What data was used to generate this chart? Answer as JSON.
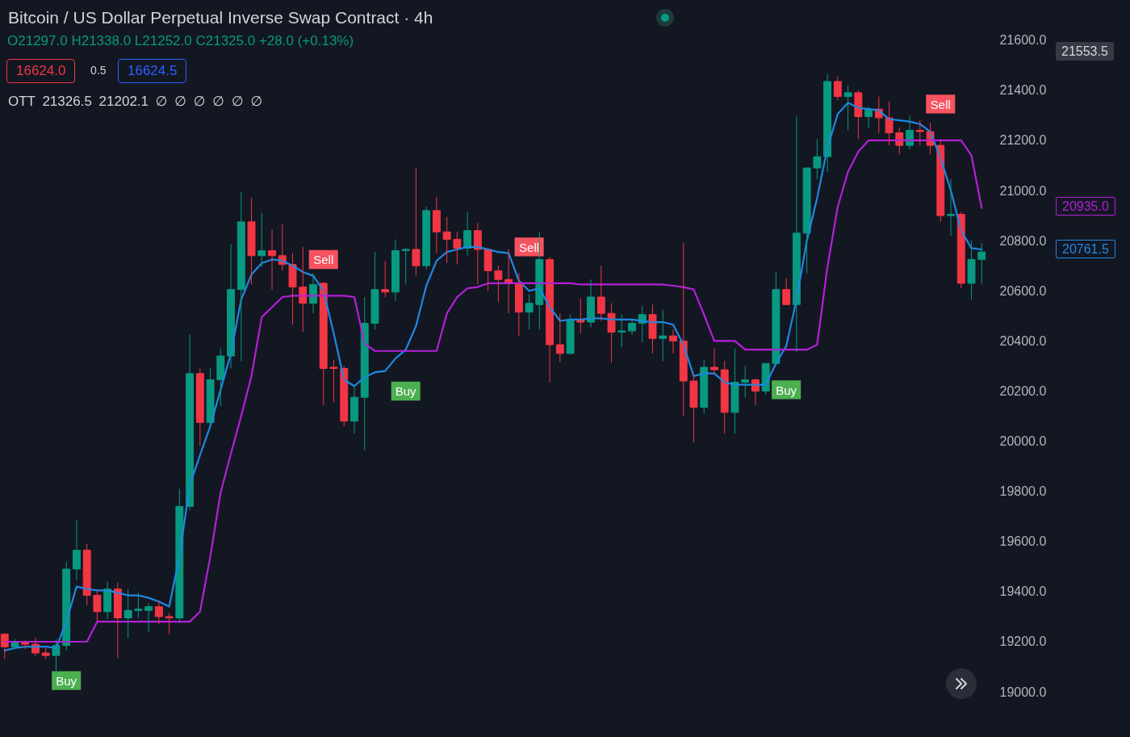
{
  "chart_data": {
    "type": "candlestick",
    "title": "Bitcoin / US Dollar Perpetual Inverse Swap Contract · 4h",
    "categories": [
      null,
      null,
      null,
      null,
      null,
      null,
      null,
      null,
      null,
      null,
      null,
      null,
      null,
      null,
      null,
      null,
      null,
      null,
      null,
      null,
      null,
      null,
      null,
      null,
      null,
      null,
      null,
      null,
      null,
      null,
      null,
      null,
      null,
      null,
      null,
      null,
      null,
      null,
      null,
      null,
      null,
      null,
      null,
      null,
      null,
      null,
      null,
      null,
      null,
      null,
      null,
      null,
      null,
      null,
      null,
      null,
      null,
      null,
      null,
      null,
      null,
      null,
      null,
      null,
      null,
      null,
      null,
      null,
      null,
      null,
      null,
      null,
      null,
      null,
      null,
      null,
      null,
      null,
      null,
      null,
      null,
      null,
      null,
      null,
      null,
      null,
      null,
      null,
      null,
      null,
      null,
      null,
      null,
      null,
      null,
      null
    ],
    "ohlc": [
      [
        19230,
        19235,
        19130,
        19180
      ],
      [
        19180,
        19210,
        19170,
        19195
      ],
      [
        19195,
        19205,
        19170,
        19190
      ],
      [
        19190,
        19215,
        19145,
        19155
      ],
      [
        19155,
        19175,
        19130,
        19145
      ],
      [
        19145,
        19210,
        19070,
        19185
      ],
      [
        19185,
        19520,
        19165,
        19490
      ],
      [
        19490,
        19685,
        19445,
        19565
      ],
      [
        19565,
        19590,
        19345,
        19385
      ],
      [
        19385,
        19405,
        19280,
        19320
      ],
      [
        19320,
        19440,
        19290,
        19410
      ],
      [
        19410,
        19435,
        19135,
        19295
      ],
      [
        19295,
        19410,
        19215,
        19325
      ],
      [
        19325,
        19395,
        19295,
        19330
      ],
      [
        19325,
        19355,
        19240,
        19340
      ],
      [
        19340,
        19365,
        19270,
        19300
      ],
      [
        19300,
        19315,
        19230,
        19295
      ],
      [
        19295,
        19810,
        19275,
        19740
      ],
      [
        19740,
        20425,
        19725,
        20270
      ],
      [
        20270,
        20290,
        19980,
        20075
      ],
      [
        20075,
        20290,
        20055,
        20245
      ],
      [
        20245,
        20370,
        20140,
        20340
      ],
      [
        20340,
        20785,
        20290,
        20605
      ],
      [
        20605,
        20995,
        20320,
        20875
      ],
      [
        20875,
        20970,
        20625,
        20740
      ],
      [
        20740,
        20910,
        20695,
        20760
      ],
      [
        20760,
        20845,
        20605,
        20740
      ],
      [
        20740,
        20865,
        20680,
        20705
      ],
      [
        20705,
        20750,
        20465,
        20615
      ],
      [
        20615,
        20775,
        20435,
        20550
      ],
      [
        20550,
        20670,
        20510,
        20625
      ],
      [
        20630,
        20635,
        20145,
        20290
      ],
      [
        20295,
        20325,
        20155,
        20290
      ],
      [
        20290,
        20300,
        20060,
        20080
      ],
      [
        20080,
        20225,
        20030,
        20175
      ],
      [
        20175,
        20575,
        19965,
        20470
      ],
      [
        20470,
        20755,
        20445,
        20605
      ],
      [
        20605,
        20720,
        20575,
        20595
      ],
      [
        20595,
        20805,
        20560,
        20760
      ],
      [
        20760,
        20770,
        20625,
        20765
      ],
      [
        20765,
        21090,
        20660,
        20700
      ],
      [
        20700,
        20935,
        20685,
        20920
      ],
      [
        20920,
        20975,
        20750,
        20835
      ],
      [
        20835,
        20895,
        20710,
        20805
      ],
      [
        20805,
        20835,
        20705,
        20770
      ],
      [
        20770,
        20915,
        20740,
        20840
      ],
      [
        20840,
        20870,
        20625,
        20765
      ],
      [
        20765,
        20770,
        20600,
        20680
      ],
      [
        20680,
        20700,
        20555,
        20645
      ],
      [
        20645,
        20765,
        20510,
        20630
      ],
      [
        20630,
        20670,
        20420,
        20515
      ],
      [
        20515,
        20585,
        20445,
        20550
      ],
      [
        20545,
        20835,
        20445,
        20725
      ],
      [
        20725,
        20735,
        20235,
        20385
      ],
      [
        20385,
        20510,
        20315,
        20350
      ],
      [
        20350,
        20505,
        20345,
        20485
      ],
      [
        20485,
        20570,
        20430,
        20475
      ],
      [
        20475,
        20645,
        20455,
        20575
      ],
      [
        20575,
        20700,
        20480,
        20510
      ],
      [
        20510,
        20550,
        20315,
        20435
      ],
      [
        20435,
        20505,
        20375,
        20440
      ],
      [
        20440,
        20485,
        20425,
        20470
      ],
      [
        20470,
        20540,
        20395,
        20505
      ],
      [
        20505,
        20545,
        20350,
        20410
      ],
      [
        20410,
        20525,
        20320,
        20420
      ],
      [
        20420,
        20445,
        20350,
        20400
      ],
      [
        20400,
        20790,
        20100,
        20240
      ],
      [
        20240,
        20270,
        19995,
        20135
      ],
      [
        20135,
        20325,
        20110,
        20295
      ],
      [
        20295,
        20370,
        20265,
        20285
      ],
      [
        20285,
        20320,
        20030,
        20115
      ],
      [
        20115,
        20370,
        20030,
        20235
      ],
      [
        20235,
        20300,
        20175,
        20245
      ],
      [
        20245,
        20250,
        20145,
        20200
      ],
      [
        20200,
        20310,
        20185,
        20310
      ],
      [
        20310,
        20675,
        20300,
        20605
      ],
      [
        20605,
        20650,
        20545,
        20545
      ],
      [
        20545,
        21295,
        20355,
        20830
      ],
      [
        20830,
        21090,
        20670,
        21090
      ],
      [
        21090,
        21205,
        21045,
        21135
      ],
      [
        21135,
        21465,
        21075,
        21435
      ],
      [
        21435,
        21455,
        21360,
        21375
      ],
      [
        21375,
        21420,
        21240,
        21390
      ],
      [
        21390,
        21400,
        21205,
        21295
      ],
      [
        21295,
        21335,
        21250,
        21325
      ],
      [
        21325,
        21375,
        21230,
        21290
      ],
      [
        21290,
        21355,
        21180,
        21230
      ],
      [
        21230,
        21250,
        21145,
        21180
      ],
      [
        21180,
        21300,
        21165,
        21240
      ],
      [
        21240,
        21280,
        21180,
        21235
      ],
      [
        21235,
        21270,
        21145,
        21180
      ],
      [
        21180,
        21205,
        20875,
        20900
      ],
      [
        20900,
        21045,
        20820,
        20905
      ],
      [
        20905,
        20915,
        20610,
        20630
      ],
      [
        20630,
        20800,
        20565,
        20725
      ],
      [
        20725,
        20790,
        20625,
        20755
      ]
    ],
    "colors": [
      "#f23645",
      "#089981",
      "#f23645",
      "#f23645",
      "#f23645",
      "#089981",
      "#089981",
      "#089981",
      "#f23645",
      "#f23645",
      "#089981",
      "#f23645",
      "#089981",
      "#089981",
      "#089981",
      "#f23645",
      "#f23645",
      "#089981",
      "#089981",
      "#f23645",
      "#089981",
      "#089981",
      "#089981",
      "#089981",
      "#f23645",
      "#089981",
      "#f23645",
      "#f23645",
      "#f23645",
      "#f23645",
      "#089981",
      "#f23645",
      "#f23645",
      "#f23645",
      "#089981",
      "#089981",
      "#089981",
      "#f23645",
      "#089981",
      "#089981",
      "#f23645",
      "#089981",
      "#f23645",
      "#f23645",
      "#f23645",
      "#089981",
      "#f23645",
      "#f23645",
      "#f23645",
      "#f23645",
      "#f23645",
      "#089981",
      "#089981",
      "#f23645",
      "#f23645",
      "#089981",
      "#f23645",
      "#089981",
      "#f23645",
      "#f23645",
      "#089981",
      "#089981",
      "#089981",
      "#f23645",
      "#089981",
      "#f23645",
      "#f23645",
      "#f23645",
      "#089981",
      "#f23645",
      "#f23645",
      "#089981",
      "#089981",
      "#f23645",
      "#089981",
      "#089981",
      "#f23645",
      "#089981",
      "#089981",
      "#089981",
      "#089981",
      "#f23645",
      "#089981",
      "#f23645",
      "#089981",
      "#f23645",
      "#f23645",
      "#f23645",
      "#089981",
      "#f23645",
      "#f23645",
      "#f23645",
      "#089981",
      "#f23645",
      "#089981",
      "#089981"
    ],
    "series": [
      {
        "type": "line",
        "color": "#1e88e5",
        "values": [
          19165,
          19175,
          19180,
          19180,
          19180,
          19175,
          19280,
          19420,
          19410,
          19405,
          19405,
          19395,
          19385,
          19385,
          19375,
          19360,
          19340,
          19540,
          19825,
          19945,
          20060,
          20205,
          20350,
          20565,
          20665,
          20710,
          20725,
          20720,
          20700,
          20675,
          20660,
          20600,
          20430,
          20245,
          20220,
          20255,
          20275,
          20280,
          20330,
          20365,
          20460,
          20620,
          20720,
          20755,
          20765,
          20775,
          20775,
          20765,
          20755,
          20750,
          20640,
          20600,
          20610,
          20535,
          20480,
          20485,
          20485,
          20490,
          20490,
          20485,
          20485,
          20485,
          20480,
          20475,
          20475,
          20465,
          20385,
          20260,
          20270,
          20270,
          20235,
          20225,
          20225,
          20225,
          20225,
          20310,
          20380,
          20565,
          20800,
          20970,
          21170,
          21305,
          21350,
          21330,
          21325,
          21320,
          21285,
          21280,
          21275,
          21265,
          21235,
          21130,
          21000,
          20840,
          20770,
          20765
        ]
      },
      {
        "type": "line",
        "color": "#b41fd8",
        "values": [
          19200,
          19200,
          19200,
          19200,
          19200,
          19200,
          19200,
          19200,
          19200,
          19280,
          19280,
          19280,
          19280,
          19280,
          19280,
          19280,
          19280,
          19280,
          19280,
          19320,
          19540,
          19795,
          19950,
          20100,
          20260,
          20495,
          20535,
          20575,
          20580,
          20580,
          20580,
          20580,
          20580,
          20580,
          20575,
          20390,
          20360,
          20360,
          20360,
          20360,
          20360,
          20360,
          20360,
          20510,
          20575,
          20610,
          20615,
          20630,
          20630,
          20630,
          20630,
          20630,
          20630,
          20630,
          20630,
          20630,
          20625,
          20625,
          20625,
          20625,
          20625,
          20625,
          20625,
          20625,
          20625,
          20620,
          20615,
          20605,
          20505,
          20400,
          20400,
          20400,
          20365,
          20365,
          20365,
          20365,
          20365,
          20365,
          20365,
          20385,
          20695,
          20935,
          21075,
          21155,
          21200,
          21200,
          21200,
          21200,
          21200,
          21200,
          21200,
          21200,
          21200,
          21200,
          21140,
          20930
        ]
      },
      {
        "type": "scatter",
        "color": "#4caf50",
        "marker": "square",
        "values": [
          null,
          null,
          null,
          null,
          null,
          null,
          19045,
          null,
          null,
          null,
          null,
          null,
          null,
          null,
          null,
          null,
          null,
          null,
          null,
          null,
          null,
          null,
          null,
          null,
          null,
          null,
          null,
          null,
          null,
          null,
          null,
          null,
          null,
          null,
          null,
          null,
          null,
          null,
          null,
          20200,
          null,
          null,
          null,
          null,
          null,
          null,
          null,
          null,
          null,
          null,
          null,
          null,
          null,
          null,
          null,
          null,
          null,
          null,
          null,
          null,
          null,
          null,
          null,
          null,
          null,
          null,
          null,
          null,
          null,
          null,
          null,
          null,
          null,
          null,
          null,
          null,
          20205,
          null,
          null,
          null,
          null,
          null,
          null,
          null,
          null,
          null,
          null,
          null,
          null,
          null,
          null,
          null,
          null,
          null,
          null,
          null
        ],
        "value_labels": [
          null,
          null,
          null,
          null,
          null,
          null,
          "Buy",
          null,
          null,
          null,
          null,
          null,
          null,
          null,
          null,
          null,
          null,
          null,
          null,
          null,
          null,
          null,
          null,
          null,
          null,
          null,
          null,
          null,
          null,
          null,
          null,
          null,
          null,
          null,
          null,
          null,
          null,
          null,
          null,
          "Buy",
          null,
          null,
          null,
          null,
          null,
          null,
          null,
          null,
          null,
          null,
          null,
          null,
          null,
          null,
          null,
          null,
          null,
          null,
          null,
          null,
          null,
          null,
          null,
          null,
          null,
          null,
          null,
          null,
          null,
          null,
          null,
          null,
          null,
          null,
          null,
          null,
          "Buy",
          null,
          null,
          null,
          null,
          null,
          null,
          null,
          null,
          null,
          null,
          null,
          null,
          null,
          null,
          null,
          null,
          null,
          null,
          null
        ]
      },
      {
        "type": "scatter",
        "color": "#f7525f",
        "marker": "square",
        "values": [
          null,
          null,
          null,
          null,
          null,
          null,
          null,
          null,
          null,
          null,
          null,
          null,
          null,
          null,
          null,
          null,
          null,
          null,
          null,
          null,
          null,
          null,
          null,
          null,
          null,
          null,
          null,
          null,
          null,
          null,
          null,
          20725,
          null,
          null,
          null,
          null,
          null,
          null,
          null,
          null,
          null,
          null,
          null,
          null,
          null,
          null,
          null,
          null,
          null,
          null,
          null,
          20775,
          null,
          null,
          null,
          null,
          null,
          null,
          null,
          null,
          null,
          null,
          null,
          null,
          null,
          null,
          null,
          null,
          null,
          null,
          null,
          null,
          null,
          null,
          null,
          null,
          null,
          null,
          null,
          null,
          null,
          null,
          null,
          null,
          null,
          null,
          null,
          null,
          null,
          null,
          null,
          21345,
          null,
          null,
          null,
          null
        ],
        "value_labels": [
          null,
          null,
          null,
          null,
          null,
          null,
          null,
          null,
          null,
          null,
          null,
          null,
          null,
          null,
          null,
          null,
          null,
          null,
          null,
          null,
          null,
          null,
          null,
          null,
          null,
          null,
          null,
          null,
          null,
          null,
          null,
          "Sell",
          null,
          null,
          null,
          null,
          null,
          null,
          null,
          null,
          null,
          null,
          null,
          null,
          null,
          null,
          null,
          null,
          null,
          null,
          null,
          "Sell",
          null,
          null,
          null,
          null,
          null,
          null,
          null,
          null,
          null,
          null,
          null,
          null,
          null,
          null,
          null,
          null,
          null,
          null,
          null,
          null,
          null,
          null,
          null,
          null,
          null,
          null,
          null,
          null,
          null,
          null,
          null,
          null,
          null,
          null,
          null,
          null,
          null,
          null,
          null,
          "Sell",
          null,
          null,
          null,
          null
        ]
      }
    ],
    "ylim": [
      18820,
      21760
    ],
    "yticks": [
      {
        "value": 19000,
        "label": "19000.0"
      },
      {
        "value": 19200,
        "label": "19200.0"
      },
      {
        "value": 19400,
        "label": "19400.0"
      },
      {
        "value": 19600,
        "label": "19600.0"
      },
      {
        "value": 19800,
        "label": "19800.0"
      },
      {
        "value": 20000,
        "label": "20000.0"
      },
      {
        "value": 20200,
        "label": "20200.0"
      },
      {
        "value": 20400,
        "label": "20400.0"
      },
      {
        "value": 20600,
        "label": "20600.0"
      },
      {
        "value": 20800,
        "label": "20800.0"
      },
      {
        "value": 21000,
        "label": "21000.0"
      },
      {
        "value": 21200,
        "label": "21200.0"
      },
      {
        "value": 21400,
        "label": "21400.0"
      },
      {
        "value": 21600,
        "label": "21600.0"
      }
    ],
    "tick_labels": "y",
    "annotations": [
      "O21297.0 H21338.0 L21252.0 C21325.0 +28.0 (+0.13%)",
      "16624.0",
      "0.5",
      "16624.5",
      "OTT 21326.5 21202.1 ∅ ∅ ∅ ∅ ∅ ∅",
      "21553.5",
      "20935.0",
      "20761.5"
    ]
  }
}
